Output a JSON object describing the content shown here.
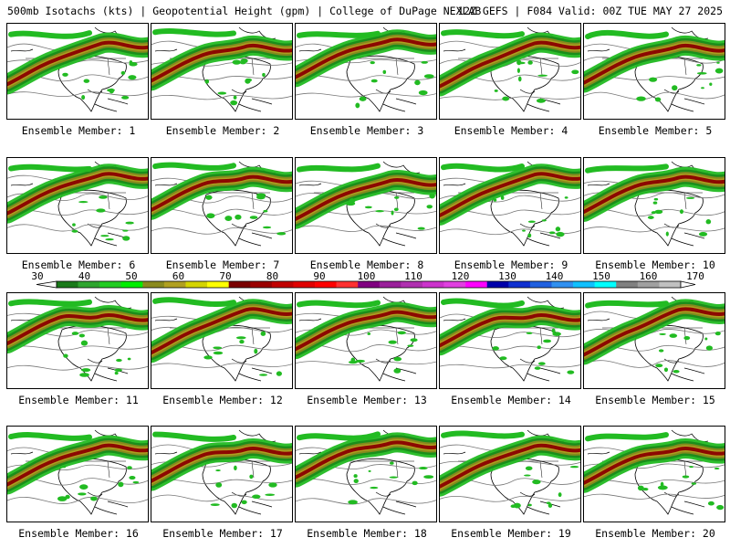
{
  "header": {
    "left": "500mb Isotachs (kts) | Geopotential Height (gpm) | College of DuPage NEXLAB",
    "right": "12Z GEFS | F084 Valid: 00Z TUE MAY 27 2025"
  },
  "panels": [
    {
      "label": "Ensemble Member: 1"
    },
    {
      "label": "Ensemble Member: 2"
    },
    {
      "label": "Ensemble Member: 3"
    },
    {
      "label": "Ensemble Member: 4"
    },
    {
      "label": "Ensemble Member: 5"
    },
    {
      "label": "Ensemble Member: 6"
    },
    {
      "label": "Ensemble Member: 7"
    },
    {
      "label": "Ensemble Member: 8"
    },
    {
      "label": "Ensemble Member: 9"
    },
    {
      "label": "Ensemble Member: 10"
    },
    {
      "label": "Ensemble Member: 11"
    },
    {
      "label": "Ensemble Member: 12"
    },
    {
      "label": "Ensemble Member: 13"
    },
    {
      "label": "Ensemble Member: 14"
    },
    {
      "label": "Ensemble Member: 15"
    },
    {
      "label": "Ensemble Member: 16"
    },
    {
      "label": "Ensemble Member: 17"
    },
    {
      "label": "Ensemble Member: 18"
    },
    {
      "label": "Ensemble Member: 19"
    },
    {
      "label": "Ensemble Member: 20"
    }
  ],
  "colorbar": {
    "labels": [
      "30",
      "40",
      "50",
      "60",
      "70",
      "80",
      "90",
      "100",
      "110",
      "120",
      "130",
      "140",
      "150",
      "160",
      "170"
    ],
    "colors": [
      "#1a7a1a",
      "#2fa52f",
      "#22cc22",
      "#00ee00",
      "#8a8a1e",
      "#b0a020",
      "#d4d400",
      "#ffff00",
      "#7a0000",
      "#9a0000",
      "#c00000",
      "#e00000",
      "#ff0000",
      "#ff3030",
      "#800080",
      "#9a209a",
      "#b030b0",
      "#cc33cc",
      "#e040e0",
      "#ff00ff",
      "#0000aa",
      "#1030d0",
      "#2060e0",
      "#3090f0",
      "#10c0ff",
      "#00ffff",
      "#808080",
      "#a0a0a0",
      "#c0c0c0"
    ]
  }
}
